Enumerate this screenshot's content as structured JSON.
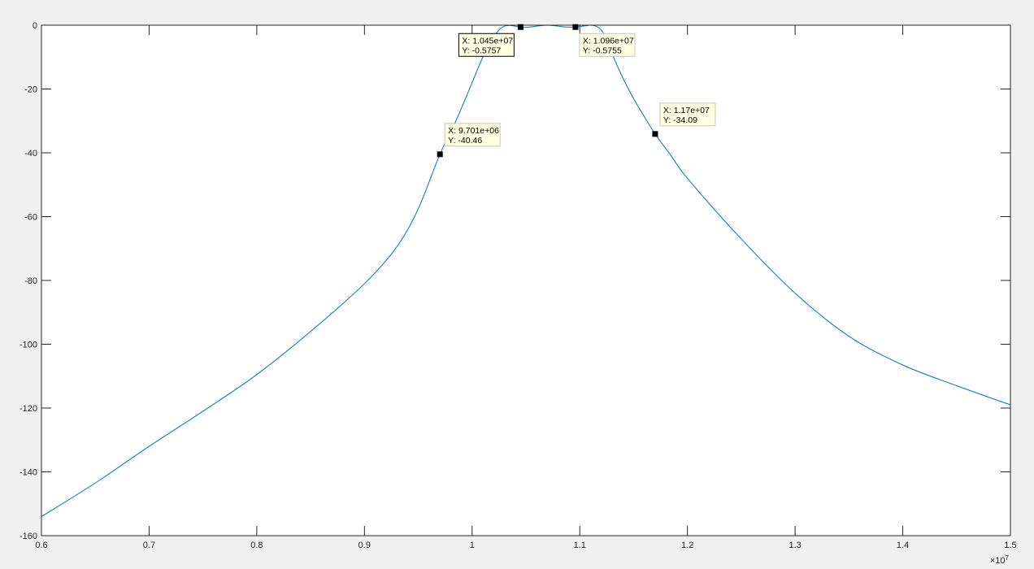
{
  "chart_data": {
    "type": "line",
    "title": "",
    "xlabel": "",
    "ylabel": "",
    "xlim": [
      6000000,
      15000000
    ],
    "ylim": [
      -160,
      0
    ],
    "x_ticks": [
      0.6,
      0.7,
      0.8,
      0.9,
      1,
      1.1,
      1.2,
      1.3,
      1.4,
      1.5
    ],
    "x_tick_labels": [
      "0.6",
      "0.7",
      "0.8",
      "0.9",
      "1",
      "1.1",
      "1.2",
      "1.3",
      "1.4",
      "1.5"
    ],
    "x_exponent_label": "×10",
    "x_exponent_power": "7",
    "y_ticks": [
      0,
      -20,
      -40,
      -60,
      -80,
      -100,
      -120,
      -140,
      -160
    ],
    "y_tick_labels": [
      "0",
      "-20",
      "-40",
      "-60",
      "-80",
      "-100",
      "-120",
      "-140",
      "-160"
    ],
    "grid": false,
    "colors": {
      "line": "#0072BD",
      "background": "#f0f0f0",
      "axes": "#ffffff",
      "tip_bg": "#ffffe1"
    },
    "series": [
      {
        "x": [
          6000000,
          6500000,
          7000000,
          7500000,
          8000000,
          8500000,
          9000000,
          9300000,
          9500000,
          9701000,
          9850000,
          10000000,
          10100000,
          10200000,
          10250000,
          10300000,
          10350000,
          10400000,
          10450000,
          10500000,
          10550000,
          10600000,
          10650000,
          10700000,
          10750000,
          10800000,
          10850000,
          10900000,
          10960000,
          11000000,
          11050000,
          11100000,
          11150000,
          11200000,
          11250000,
          11300000,
          11400000,
          11500000,
          11600000,
          11700000,
          11850000,
          12000000,
          12500000,
          13000000,
          13500000,
          14000000,
          14500000,
          15000000
        ],
        "y": [
          -154,
          -143.5,
          -132,
          -121,
          -109.5,
          -96,
          -81,
          -69.5,
          -57.5,
          -40.46,
          -30,
          -18,
          -10,
          -4,
          -1.5,
          -0.3,
          -0.1,
          -0.3,
          -0.5757,
          -0.7,
          -0.5,
          -0.3,
          -0.1,
          0,
          -0.1,
          -0.3,
          -0.5,
          -0.6,
          -0.5755,
          -0.4,
          -0.2,
          0,
          -0.3,
          -1.5,
          -4.5,
          -9,
          -16.5,
          -23,
          -28.7,
          -34.09,
          -41,
          -48,
          -67,
          -84,
          -97.5,
          -106.5,
          -113,
          -119
        ]
      }
    ],
    "data_tips": [
      {
        "x": 10450000,
        "y": -0.5757,
        "x_text": "X: 1.045e+07",
        "y_text": "Y: -0.5757",
        "side": "below-left",
        "selected": true
      },
      {
        "x": 10960000,
        "y": -0.5755,
        "x_text": "X: 1.096e+07",
        "y_text": "Y: -0.5755",
        "side": "below-right",
        "selected": false
      },
      {
        "x": 9701000,
        "y": -40.46,
        "x_text": "X: 9.701e+06",
        "y_text": "Y: -40.46",
        "side": "above-right",
        "selected": false
      },
      {
        "x": 11700000,
        "y": -34.09,
        "x_text": "X: 1.17e+07",
        "y_text": "Y: -34.09",
        "side": "above-right",
        "selected": false
      }
    ]
  }
}
